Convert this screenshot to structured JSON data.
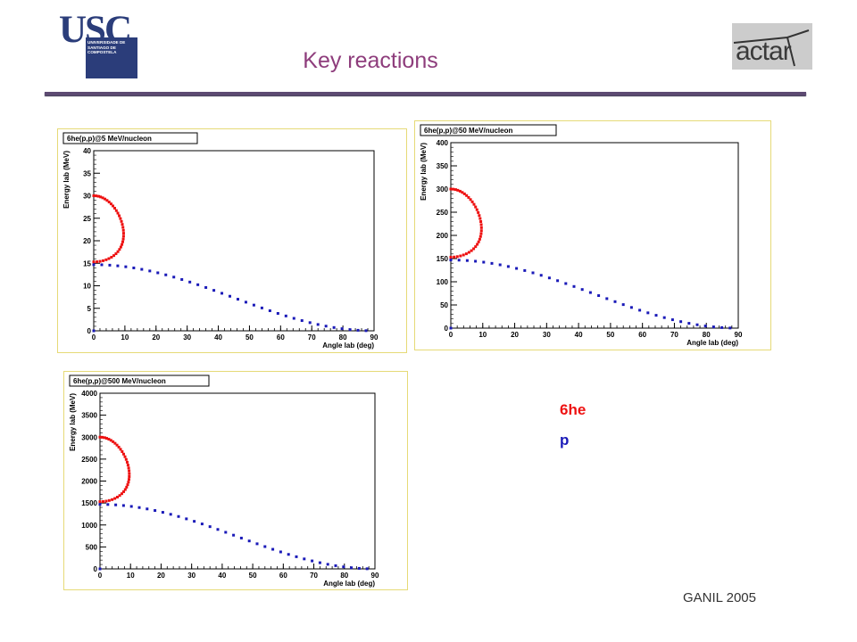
{
  "header": {
    "logo_text": "USC",
    "logo_subtext": "UNIVERSIDADE DE SANTIAGO DE COMPOSTELA",
    "title": "Key reactions",
    "actar_text": "actar"
  },
  "legend": {
    "he6": "6he",
    "p": "p",
    "he6_color": "#ee1111",
    "p_color": "#1a1ab8"
  },
  "footer": {
    "text": "GANIL 2005"
  },
  "chart_data": [
    {
      "type": "scatter",
      "title": "6he(p,p)@5 MeV/nucleon",
      "xlabel": "Angle lab (deg)",
      "ylabel": "Energy lab (MeV)",
      "xlim": [
        0,
        90
      ],
      "ylim": [
        0,
        40
      ],
      "xticks": [
        0,
        10,
        20,
        30,
        40,
        50,
        60,
        70,
        80,
        90
      ],
      "yticks": [
        0,
        5,
        10,
        15,
        20,
        25,
        30,
        35,
        40
      ],
      "beam_energy": 30,
      "grid": false,
      "series": [
        {
          "name": "6he",
          "color": "#ee1111"
        },
        {
          "name": "p",
          "color": "#1a1ab8"
        }
      ]
    },
    {
      "type": "scatter",
      "title": "6he(p,p)@50 MeV/nucleon",
      "xlabel": "Angle lab (deg)",
      "ylabel": "Energy lab (MeV)",
      "xlim": [
        0,
        90
      ],
      "ylim": [
        0,
        400
      ],
      "xticks": [
        0,
        10,
        20,
        30,
        40,
        50,
        60,
        70,
        80,
        90
      ],
      "yticks": [
        0,
        50,
        100,
        150,
        200,
        250,
        300,
        350,
        400
      ],
      "beam_energy": 300,
      "grid": false,
      "series": [
        {
          "name": "6he",
          "color": "#ee1111"
        },
        {
          "name": "p",
          "color": "#1a1ab8"
        }
      ]
    },
    {
      "type": "scatter",
      "title": "6he(p,p)@500 MeV/nucleon",
      "xlabel": "Angle lab (deg)",
      "ylabel": "Energy lab (MeV)",
      "xlim": [
        0,
        90
      ],
      "ylim": [
        0,
        4000
      ],
      "xticks": [
        0,
        10,
        20,
        30,
        40,
        50,
        60,
        70,
        80,
        90
      ],
      "yticks": [
        0,
        500,
        1000,
        1500,
        2000,
        2500,
        3000,
        3500,
        4000
      ],
      "beam_energy": 3000,
      "grid": false,
      "series": [
        {
          "name": "6he",
          "color": "#ee1111"
        },
        {
          "name": "p",
          "color": "#1a1ab8"
        }
      ]
    }
  ]
}
